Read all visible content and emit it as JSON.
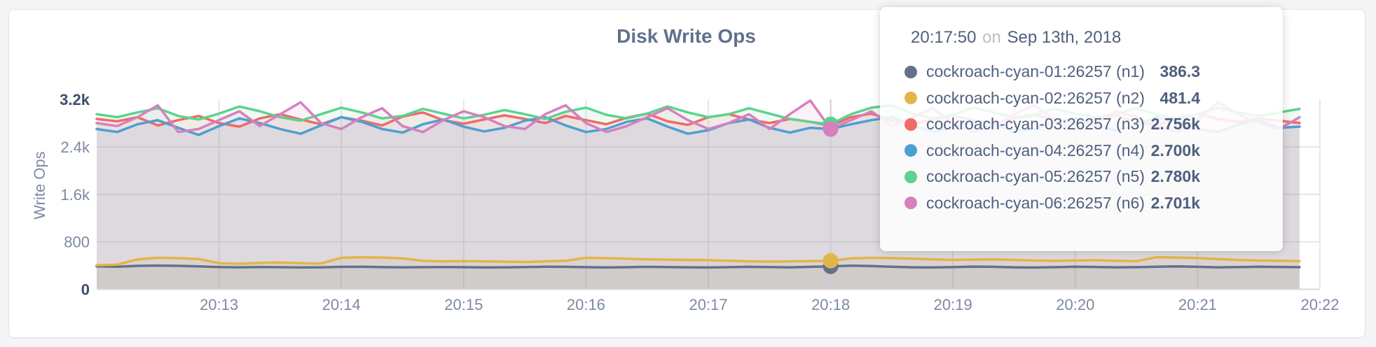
{
  "card": {
    "title": "Disk Write Ops"
  },
  "tooltip": {
    "time": "20:17:50",
    "on_word": "on",
    "date": "Sep 13th, 2018",
    "rows": [
      {
        "name": "cockroach-cyan-01:26257 (n1)",
        "value": "386.3",
        "color": "#63718C"
      },
      {
        "name": "cockroach-cyan-02:26257 (n2)",
        "value": "481.4",
        "color": "#E3B548"
      },
      {
        "name": "cockroach-cyan-03:26257 (n3)",
        "value": "2.756k",
        "color": "#F16969"
      },
      {
        "name": "cockroach-cyan-04:26257 (n4)",
        "value": "2.700k",
        "color": "#4E9FD1"
      },
      {
        "name": "cockroach-cyan-05:26257 (n5)",
        "value": "2.780k",
        "color": "#5ED28E"
      },
      {
        "name": "cockroach-cyan-06:26257 (n6)",
        "value": "2.701k",
        "color": "#D77FBF"
      }
    ]
  },
  "chart_data": {
    "type": "line",
    "title": "Disk Write Ops",
    "xlabel": "",
    "ylabel": "Write Ops",
    "x_start": "20:12:00",
    "x_end": "20:22:00",
    "x_interval_seconds": 10,
    "ylim": [
      0,
      3200
    ],
    "grid": true,
    "legend_position": "tooltip",
    "x_ticks": [
      {
        "label": "20:13",
        "t": 60
      },
      {
        "label": "20:14",
        "t": 120
      },
      {
        "label": "20:15",
        "t": 180
      },
      {
        "label": "20:16",
        "t": 240
      },
      {
        "label": "20:17",
        "t": 300
      },
      {
        "label": "20:18",
        "t": 360
      },
      {
        "label": "20:19",
        "t": 420
      },
      {
        "label": "20:20",
        "t": 480
      },
      {
        "label": "20:21",
        "t": 540
      },
      {
        "label": "20:22",
        "t": 600
      }
    ],
    "y_ticks": [
      {
        "label": "0",
        "value": 0,
        "emphasis": true
      },
      {
        "label": "800",
        "value": 800,
        "emphasis": false
      },
      {
        "label": "1.6k",
        "value": 1600,
        "emphasis": false
      },
      {
        "label": "2.4k",
        "value": 2400,
        "emphasis": false
      },
      {
        "label": "3.2k",
        "value": 3200,
        "emphasis": true
      }
    ],
    "hover": {
      "time_label": "20:17:50",
      "t": 360,
      "values": [
        386.3,
        481.4,
        2756,
        2700,
        2780,
        2701
      ]
    },
    "series": [
      {
        "name": "cockroach-cyan-01:26257 (n1)",
        "color": "#63718C",
        "values": [
          385,
          380,
          395,
          400,
          395,
          385,
          375,
          370,
          375,
          372,
          368,
          370,
          378,
          380,
          375,
          370,
          372,
          375,
          372,
          368,
          370,
          374,
          380,
          378,
          372,
          368,
          372,
          378,
          375,
          370,
          368,
          372,
          378,
          374,
          370,
          378,
          386.3,
          398,
          392,
          380,
          370,
          368,
          374,
          382,
          378,
          370,
          366,
          372,
          380,
          376,
          370,
          372,
          380,
          386,
          378,
          370,
          374,
          380,
          376,
          372
        ]
      },
      {
        "name": "cockroach-cyan-02:26257 (n2)",
        "color": "#E3B548",
        "values": [
          405,
          415,
          505,
          530,
          525,
          510,
          440,
          430,
          445,
          450,
          440,
          435,
          530,
          540,
          535,
          520,
          480,
          470,
          475,
          470,
          465,
          460,
          470,
          480,
          530,
          525,
          515,
          505,
          500,
          495,
          490,
          480,
          470,
          465,
          470,
          475,
          481.4,
          520,
          530,
          525,
          515,
          505,
          495,
          500,
          505,
          495,
          485,
          480,
          485,
          490,
          480,
          475,
          540,
          535,
          525,
          510,
          495,
          485,
          480,
          475
        ]
      },
      {
        "name": "cockroach-cyan-03:26257 (n3)",
        "color": "#F16969",
        "values": [
          2870,
          2830,
          2900,
          2760,
          2850,
          2920,
          2800,
          2740,
          2880,
          2950,
          2860,
          2780,
          2900,
          2840,
          2760,
          2910,
          2980,
          2850,
          2790,
          2860,
          2930,
          2870,
          2800,
          2920,
          2850,
          2780,
          2890,
          2960,
          2830,
          2770,
          2900,
          2950,
          2860,
          2800,
          2870,
          2820,
          2756,
          2900,
          2960,
          2840,
          2780,
          2860,
          2920,
          2850,
          2790,
          2880,
          2940,
          2860,
          2800,
          2870,
          2930,
          2810,
          2760,
          2890,
          2950,
          2870,
          2820,
          2880,
          2840,
          2800
        ]
      },
      {
        "name": "cockroach-cyan-04:26257 (n4)",
        "color": "#4E9FD1",
        "values": [
          2700,
          2650,
          2780,
          2850,
          2720,
          2600,
          2750,
          2880,
          2800,
          2700,
          2620,
          2760,
          2900,
          2820,
          2700,
          2640,
          2780,
          2860,
          2740,
          2660,
          2720,
          2840,
          2900,
          2760,
          2650,
          2700,
          2820,
          2880,
          2740,
          2620,
          2680,
          2800,
          2860,
          2720,
          2640,
          2720,
          2700,
          2780,
          2850,
          2900,
          2760,
          2650,
          2720,
          2840,
          2780,
          2660,
          2700,
          2820,
          2880,
          2740,
          2680,
          2760,
          2900,
          2800,
          2700,
          2650,
          2780,
          2850,
          2720,
          2740
        ]
      },
      {
        "name": "cockroach-cyan-05:26257 (n5)",
        "color": "#5ED28E",
        "values": [
          2950,
          2900,
          2980,
          3050,
          2920,
          2860,
          2960,
          3080,
          3000,
          2900,
          2840,
          2950,
          3060,
          2980,
          2880,
          2920,
          3040,
          2960,
          2880,
          2940,
          3020,
          2950,
          2870,
          2990,
          3060,
          2940,
          2880,
          2960,
          3080,
          2980,
          2900,
          2950,
          3050,
          2960,
          2870,
          2820,
          2780,
          2950,
          3060,
          3100,
          2960,
          2880,
          2940,
          3060,
          2980,
          2900,
          2950,
          3040,
          2960,
          2890,
          2960,
          3050,
          2940,
          2870,
          2950,
          3060,
          2980,
          2920,
          2980,
          3040
        ]
      },
      {
        "name": "cockroach-cyan-06:26257 (n6)",
        "color": "#D77FBF",
        "values": [
          2800,
          2750,
          2900,
          3100,
          2650,
          2700,
          2850,
          3000,
          2750,
          2950,
          3150,
          2800,
          2700,
          2900,
          3050,
          2750,
          2650,
          2850,
          3000,
          2900,
          2750,
          2700,
          2950,
          3100,
          2800,
          2650,
          2750,
          2900,
          3050,
          2850,
          2700,
          2800,
          2950,
          2700,
          2950,
          3180,
          2701,
          2850,
          3000,
          2750,
          2900,
          3050,
          2800,
          2650,
          2750,
          2950,
          3100,
          2850,
          2700,
          2800,
          3000,
          2900,
          2750,
          2650,
          2850,
          3150,
          2950,
          2800,
          2700,
          2900
        ]
      }
    ]
  }
}
